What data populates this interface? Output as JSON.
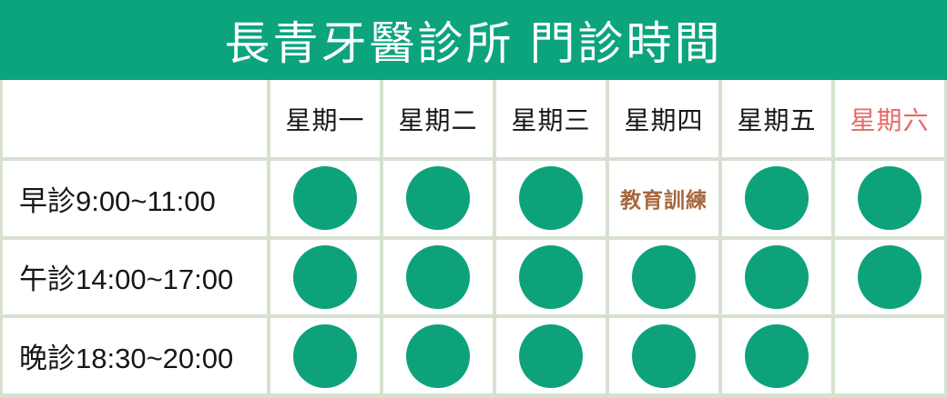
{
  "title": "長青牙醫診所 門診時間",
  "colors": {
    "brand_green": "#0CA47D",
    "dot_green": "#0EA27B",
    "saturday_red": "#E56A64",
    "note_brown": "#A8683F",
    "grid_border": "#D6E1D0",
    "title_text": "#FFFFFF",
    "body_text": "#161616"
  },
  "table": {
    "day_headers": [
      {
        "label": "星期一",
        "accent": false
      },
      {
        "label": "星期二",
        "accent": false
      },
      {
        "label": "星期三",
        "accent": false
      },
      {
        "label": "星期四",
        "accent": false
      },
      {
        "label": "星期五",
        "accent": false
      },
      {
        "label": "星期六",
        "accent": true
      }
    ],
    "open_marker": "green-dot",
    "rows": [
      {
        "label": "早診9:00~11:00",
        "cells": [
          "open",
          "open",
          "open",
          "教育訓練",
          "open",
          "open"
        ]
      },
      {
        "label": "午診14:00~17:00",
        "cells": [
          "open",
          "open",
          "open",
          "open",
          "open",
          "open"
        ]
      },
      {
        "label": "晚診18:30~20:00",
        "cells": [
          "open",
          "open",
          "open",
          "open",
          "open",
          ""
        ]
      }
    ]
  },
  "chart_data": {
    "type": "table",
    "title": "長青牙醫診所 門診時間",
    "columns": [
      "",
      "星期一",
      "星期二",
      "星期三",
      "星期四",
      "星期五",
      "星期六"
    ],
    "rows": [
      [
        "早診9:00~11:00",
        "open",
        "open",
        "open",
        "教育訓練",
        "open",
        "open"
      ],
      [
        "午診14:00~17:00",
        "open",
        "open",
        "open",
        "open",
        "open",
        "open"
      ],
      [
        "晚診18:30~20:00",
        "open",
        "open",
        "open",
        "open",
        "open",
        "closed"
      ]
    ],
    "marker_open": "green-dot",
    "layout": "first column = session labels; header row = weekdays; Saturday header highlighted red"
  }
}
